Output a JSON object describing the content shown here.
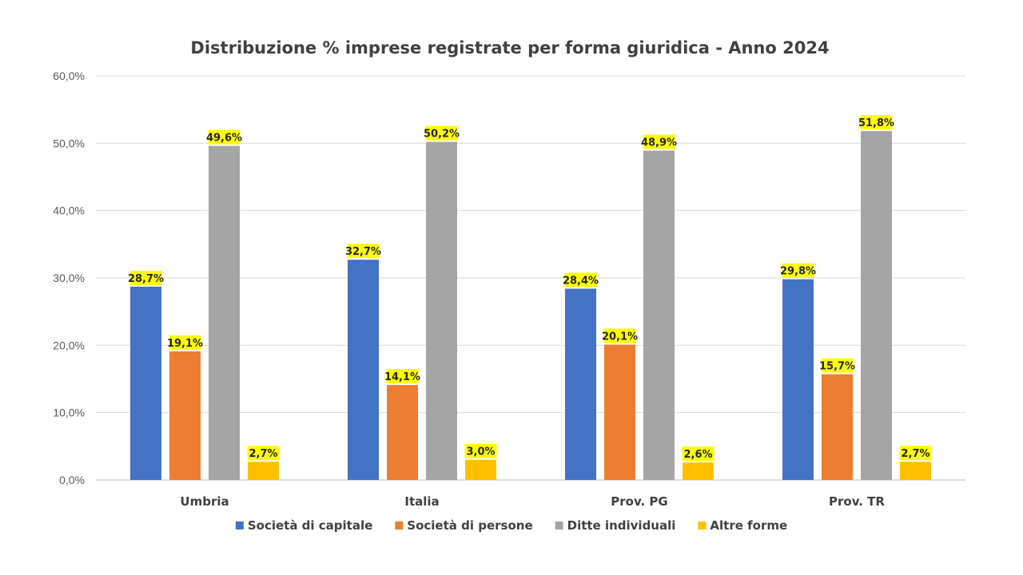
{
  "chart_data": {
    "type": "bar",
    "title": "Distribuzione % imprese registrate per forma giuridica - Anno 2024",
    "categories": [
      "Umbria",
      "Italia",
      "Prov. PG",
      "Prov. TR"
    ],
    "series": [
      {
        "name": "Società di capitale",
        "color": "#4472C4",
        "values": [
          28.7,
          32.7,
          28.4,
          29.8
        ],
        "labels": [
          "28,7%",
          "32,7%",
          "28,4%",
          "29,8%"
        ]
      },
      {
        "name": "Società di persone",
        "color": "#ED7D31",
        "values": [
          19.1,
          14.1,
          20.1,
          15.7
        ],
        "labels": [
          "19,1%",
          "14,1%",
          "20,1%",
          "15,7%"
        ]
      },
      {
        "name": "Ditte individuali",
        "color": "#A5A5A5",
        "values": [
          49.6,
          50.2,
          48.9,
          51.8
        ],
        "labels": [
          "49,6%",
          "50,2%",
          "48,9%",
          "51,8%"
        ]
      },
      {
        "name": "Altre forme",
        "color": "#FFC000",
        "values": [
          2.7,
          3.0,
          2.6,
          2.7
        ],
        "labels": [
          "2,7%",
          "3,0%",
          "2,6%",
          "2,7%"
        ]
      }
    ],
    "ylim": [
      0,
      60
    ],
    "yticks": [
      0,
      10,
      20,
      30,
      40,
      50,
      60
    ],
    "ytick_labels": [
      "0,0%",
      "10,0%",
      "20,0%",
      "30,0%",
      "40,0%",
      "50,0%",
      "60,0%"
    ],
    "grid": true,
    "legend_position": "bottom",
    "data_label_highlight": "#FFFF00"
  }
}
